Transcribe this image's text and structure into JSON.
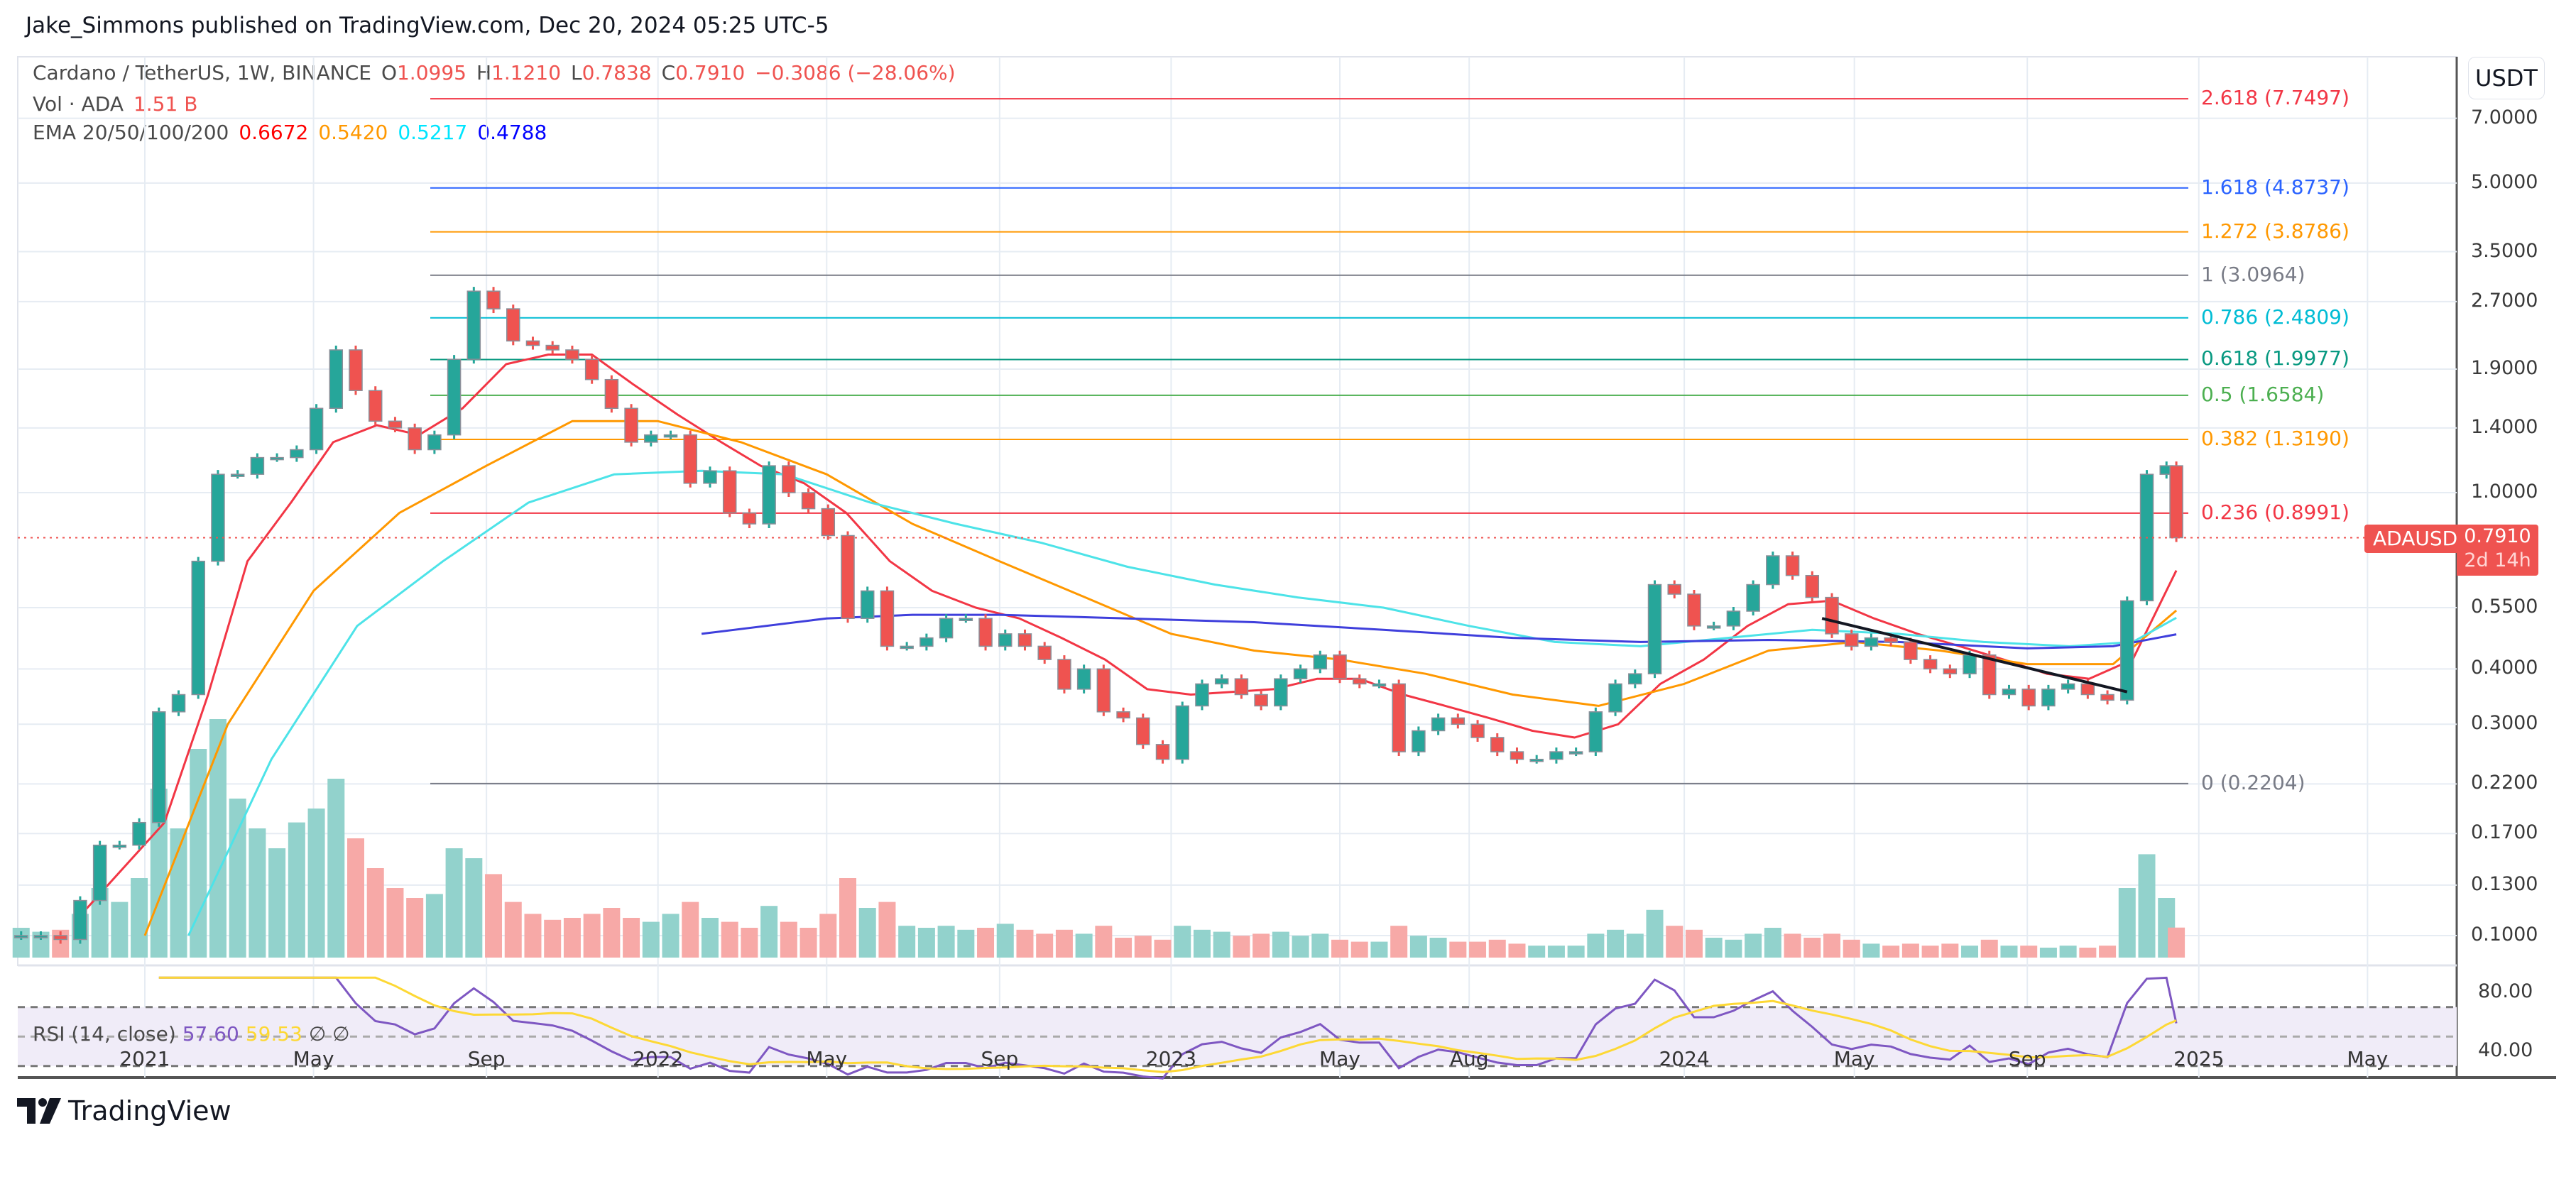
{
  "header": {
    "published": "Jake_Simmons published on TradingView.com, Dec 20, 2024 05:25 UTC-5"
  },
  "legend": {
    "symbol": "Cardano / TetherUS, 1W, BINANCE",
    "o_label": "O",
    "o": "1.0995",
    "h_label": "H",
    "h": "1.1210",
    "l_label": "L",
    "l": "0.7838",
    "c_label": "C",
    "c": "0.7910",
    "change": "−0.3086 (−28.06%)",
    "vol_label": "Vol · ADA",
    "vol": "1.51 B",
    "ema_label": "EMA 20/50/100/200",
    "ema20": "0.6672",
    "ema50": "0.5420",
    "ema100": "0.5217",
    "ema200": "0.4788"
  },
  "price_axis": {
    "currency": "USDT",
    "ticks": [
      "7.0000",
      "5.0000",
      "3.5000",
      "2.7000",
      "1.9000",
      "1.4000",
      "1.0000",
      "0.5500",
      "0.4000",
      "0.3000",
      "0.2200",
      "0.1700",
      "0.1300",
      "0.1000"
    ],
    "current_symbol": "ADAUSDT",
    "current_price": "0.7910",
    "countdown": "2d 14h"
  },
  "rsi": {
    "label": "RSI (14, close)",
    "value": "57.60",
    "ma_value": "59.53",
    "na1": "∅",
    "na2": "∅",
    "ticks": [
      "80.00",
      "40.00"
    ]
  },
  "time_axis": [
    {
      "label": "2021",
      "date": "2021-01-01"
    },
    {
      "label": "May",
      "date": "2021-05-01"
    },
    {
      "label": "Sep",
      "date": "2021-09-01"
    },
    {
      "label": "2022",
      "date": "2022-01-01"
    },
    {
      "label": "May",
      "date": "2022-05-01"
    },
    {
      "label": "Sep",
      "date": "2022-09-01"
    },
    {
      "label": "2023",
      "date": "2023-01-01"
    },
    {
      "label": "May",
      "date": "2023-05-01"
    },
    {
      "label": "Aug",
      "date": "2023-08-01"
    },
    {
      "label": "2024",
      "date": "2024-01-01"
    },
    {
      "label": "May",
      "date": "2024-05-01"
    },
    {
      "label": "Sep",
      "date": "2024-09-01"
    },
    {
      "label": "2025",
      "date": "2025-01-01"
    },
    {
      "label": "May",
      "date": "2025-05-01"
    }
  ],
  "brand": {
    "name": "TradingView"
  },
  "colors": {
    "up": "#26a69a",
    "down": "#ef5350",
    "up_vol": "#92d2cc",
    "down_vol": "#f7a9a7",
    "ema20": "#f23645",
    "ema50": "#ff9800",
    "ema100": "#4de3e8",
    "ema200": "#3f3fdc",
    "rsi": "#7e57c2",
    "rsi_ma": "#fdd835",
    "trendline": "#131722"
  },
  "chart_data": {
    "type": "candlestick",
    "title": "Cardano / TetherUS, 1W, BINANCE",
    "y_scale": "log",
    "ylim": [
      0.09,
      8.5
    ],
    "grid": true,
    "candles_date_close_volumeB": [
      [
        "2020-10-05",
        0.1,
        1.5
      ],
      [
        "2020-10-19",
        0.1,
        1.3
      ],
      [
        "2020-11-02",
        0.098,
        1.4
      ],
      [
        "2020-11-16",
        0.12,
        2.2
      ],
      [
        "2020-11-30",
        0.16,
        3.5
      ],
      [
        "2020-12-14",
        0.16,
        2.8
      ],
      [
        "2020-12-28",
        0.18,
        4.0
      ],
      [
        "2021-01-11",
        0.32,
        8.5
      ],
      [
        "2021-01-25",
        0.35,
        6.5
      ],
      [
        "2021-02-08",
        0.7,
        10.5
      ],
      [
        "2021-02-22",
        1.1,
        12.0
      ],
      [
        "2021-03-08",
        1.1,
        8.0
      ],
      [
        "2021-03-22",
        1.2,
        6.5
      ],
      [
        "2021-04-05",
        1.2,
        5.5
      ],
      [
        "2021-04-19",
        1.25,
        6.8
      ],
      [
        "2021-05-03",
        1.55,
        7.5
      ],
      [
        "2021-05-17",
        2.1,
        9.0
      ],
      [
        "2021-05-31",
        1.7,
        6.0
      ],
      [
        "2021-06-14",
        1.45,
        4.5
      ],
      [
        "2021-06-28",
        1.4,
        3.5
      ],
      [
        "2021-07-12",
        1.25,
        3.0
      ],
      [
        "2021-07-26",
        1.35,
        3.2
      ],
      [
        "2021-08-09",
        2.0,
        5.5
      ],
      [
        "2021-08-23",
        2.85,
        5.0
      ],
      [
        "2021-09-06",
        2.6,
        4.2
      ],
      [
        "2021-09-20",
        2.2,
        2.8
      ],
      [
        "2021-10-04",
        2.15,
        2.2
      ],
      [
        "2021-10-18",
        2.1,
        1.9
      ],
      [
        "2021-11-01",
        2.0,
        2.0
      ],
      [
        "2021-11-15",
        1.8,
        2.2
      ],
      [
        "2021-11-29",
        1.55,
        2.5
      ],
      [
        "2021-12-13",
        1.3,
        2.0
      ],
      [
        "2021-12-27",
        1.35,
        1.8
      ],
      [
        "2022-01-10",
        1.35,
        2.2
      ],
      [
        "2022-01-24",
        1.05,
        2.8
      ],
      [
        "2022-02-07",
        1.12,
        2.0
      ],
      [
        "2022-02-21",
        0.9,
        1.8
      ],
      [
        "2022-03-07",
        0.85,
        1.5
      ],
      [
        "2022-03-21",
        1.15,
        2.6
      ],
      [
        "2022-04-04",
        1.0,
        1.8
      ],
      [
        "2022-04-18",
        0.92,
        1.5
      ],
      [
        "2022-05-02",
        0.8,
        2.2
      ],
      [
        "2022-05-16",
        0.52,
        4.0
      ],
      [
        "2022-05-30",
        0.6,
        2.5
      ],
      [
        "2022-06-13",
        0.45,
        2.8
      ],
      [
        "2022-06-27",
        0.45,
        1.6
      ],
      [
        "2022-07-11",
        0.47,
        1.5
      ],
      [
        "2022-07-25",
        0.52,
        1.6
      ],
      [
        "2022-08-08",
        0.52,
        1.4
      ],
      [
        "2022-08-22",
        0.45,
        1.5
      ],
      [
        "2022-09-05",
        0.48,
        1.7
      ],
      [
        "2022-09-19",
        0.45,
        1.4
      ],
      [
        "2022-10-03",
        0.42,
        1.2
      ],
      [
        "2022-10-17",
        0.36,
        1.4
      ],
      [
        "2022-10-31",
        0.4,
        1.2
      ],
      [
        "2022-11-14",
        0.32,
        1.6
      ],
      [
        "2022-11-28",
        0.31,
        1.0
      ],
      [
        "2022-12-12",
        0.27,
        1.1
      ],
      [
        "2022-12-26",
        0.25,
        0.9
      ],
      [
        "2023-01-09",
        0.33,
        1.6
      ],
      [
        "2023-01-23",
        0.37,
        1.4
      ],
      [
        "2023-02-06",
        0.38,
        1.3
      ],
      [
        "2023-02-20",
        0.35,
        1.1
      ],
      [
        "2023-03-06",
        0.33,
        1.2
      ],
      [
        "2023-03-20",
        0.38,
        1.3
      ],
      [
        "2023-04-03",
        0.4,
        1.1
      ],
      [
        "2023-04-17",
        0.43,
        1.2
      ],
      [
        "2023-05-01",
        0.38,
        0.9
      ],
      [
        "2023-05-15",
        0.37,
        0.8
      ],
      [
        "2023-05-29",
        0.37,
        0.8
      ],
      [
        "2023-06-12",
        0.26,
        1.6
      ],
      [
        "2023-06-26",
        0.29,
        1.1
      ],
      [
        "2023-07-10",
        0.31,
        1.0
      ],
      [
        "2023-07-24",
        0.3,
        0.8
      ],
      [
        "2023-08-07",
        0.28,
        0.8
      ],
      [
        "2023-08-21",
        0.26,
        0.9
      ],
      [
        "2023-09-04",
        0.25,
        0.7
      ],
      [
        "2023-09-18",
        0.25,
        0.6
      ],
      [
        "2023-10-02",
        0.26,
        0.6
      ],
      [
        "2023-10-16",
        0.26,
        0.6
      ],
      [
        "2023-10-30",
        0.32,
        1.2
      ],
      [
        "2023-11-13",
        0.37,
        1.4
      ],
      [
        "2023-11-27",
        0.39,
        1.2
      ],
      [
        "2023-12-11",
        0.62,
        2.4
      ],
      [
        "2023-12-25",
        0.59,
        1.6
      ],
      [
        "2024-01-08",
        0.5,
        1.4
      ],
      [
        "2024-01-22",
        0.5,
        1.0
      ],
      [
        "2024-02-05",
        0.54,
        0.9
      ],
      [
        "2024-02-19",
        0.62,
        1.2
      ],
      [
        "2024-03-04",
        0.72,
        1.5
      ],
      [
        "2024-03-18",
        0.65,
        1.2
      ],
      [
        "2024-04-01",
        0.58,
        1.0
      ],
      [
        "2024-04-15",
        0.48,
        1.2
      ],
      [
        "2024-04-29",
        0.45,
        0.9
      ],
      [
        "2024-05-13",
        0.47,
        0.7
      ],
      [
        "2024-05-27",
        0.46,
        0.6
      ],
      [
        "2024-06-10",
        0.42,
        0.7
      ],
      [
        "2024-06-24",
        0.4,
        0.6
      ],
      [
        "2024-07-08",
        0.39,
        0.7
      ],
      [
        "2024-07-22",
        0.43,
        0.6
      ],
      [
        "2024-08-05",
        0.35,
        0.9
      ],
      [
        "2024-08-19",
        0.36,
        0.6
      ],
      [
        "2024-09-02",
        0.33,
        0.6
      ],
      [
        "2024-09-16",
        0.36,
        0.5
      ],
      [
        "2024-09-30",
        0.37,
        0.6
      ],
      [
        "2024-10-14",
        0.35,
        0.5
      ],
      [
        "2024-10-28",
        0.34,
        0.6
      ],
      [
        "2024-11-11",
        0.57,
        3.5
      ],
      [
        "2024-11-25",
        1.1,
        5.2
      ],
      [
        "2024-12-09",
        1.15,
        3.0
      ],
      [
        "2024-12-16",
        0.791,
        1.51
      ]
    ],
    "first_open": 0.1,
    "ema": [
      {
        "name": "EMA 20",
        "points": [
          [
            "2020-11-15",
            0.11
          ],
          [
            "2021-01-15",
            0.18
          ],
          [
            "2021-02-15",
            0.35
          ],
          [
            "2021-03-15",
            0.7
          ],
          [
            "2021-04-15",
            0.95
          ],
          [
            "2021-05-15",
            1.3
          ],
          [
            "2021-06-15",
            1.42
          ],
          [
            "2021-07-15",
            1.35
          ],
          [
            "2021-08-15",
            1.55
          ],
          [
            "2021-09-15",
            1.95
          ],
          [
            "2021-10-15",
            2.05
          ],
          [
            "2021-11-15",
            2.05
          ],
          [
            "2021-12-15",
            1.75
          ],
          [
            "2022-01-15",
            1.5
          ],
          [
            "2022-02-15",
            1.3
          ],
          [
            "2022-03-15",
            1.15
          ],
          [
            "2022-04-15",
            1.05
          ],
          [
            "2022-05-15",
            0.9
          ],
          [
            "2022-06-15",
            0.7
          ],
          [
            "2022-07-15",
            0.6
          ],
          [
            "2022-08-15",
            0.55
          ],
          [
            "2022-09-15",
            0.52
          ],
          [
            "2022-10-15",
            0.47
          ],
          [
            "2022-11-15",
            0.42
          ],
          [
            "2022-12-15",
            0.36
          ],
          [
            "2023-01-15",
            0.35
          ],
          [
            "2023-03-15",
            0.36
          ],
          [
            "2023-04-15",
            0.38
          ],
          [
            "2023-05-15",
            0.38
          ],
          [
            "2023-06-15",
            0.35
          ],
          [
            "2023-07-15",
            0.33
          ],
          [
            "2023-08-15",
            0.31
          ],
          [
            "2023-09-15",
            0.29
          ],
          [
            "2023-10-15",
            0.28
          ],
          [
            "2023-11-15",
            0.3
          ],
          [
            "2023-12-15",
            0.37
          ],
          [
            "2024-01-15",
            0.42
          ],
          [
            "2024-02-15",
            0.5
          ],
          [
            "2024-03-15",
            0.56
          ],
          [
            "2024-04-15",
            0.57
          ],
          [
            "2024-05-15",
            0.52
          ],
          [
            "2024-06-15",
            0.48
          ],
          [
            "2024-07-15",
            0.45
          ],
          [
            "2024-08-15",
            0.42
          ],
          [
            "2024-09-15",
            0.39
          ],
          [
            "2024-10-15",
            0.38
          ],
          [
            "2024-11-15",
            0.42
          ],
          [
            "2024-12-16",
            0.6672
          ]
        ]
      },
      {
        "name": "EMA 50",
        "points": [
          [
            "2021-01-01",
            0.1
          ],
          [
            "2021-03-01",
            0.3
          ],
          [
            "2021-05-01",
            0.6
          ],
          [
            "2021-07-01",
            0.9
          ],
          [
            "2021-09-01",
            1.15
          ],
          [
            "2021-11-01",
            1.45
          ],
          [
            "2022-01-01",
            1.45
          ],
          [
            "2022-03-01",
            1.3
          ],
          [
            "2022-05-01",
            1.1
          ],
          [
            "2022-07-01",
            0.85
          ],
          [
            "2022-09-01",
            0.7
          ],
          [
            "2022-11-01",
            0.58
          ],
          [
            "2023-01-01",
            0.48
          ],
          [
            "2023-03-01",
            0.44
          ],
          [
            "2023-05-01",
            0.42
          ],
          [
            "2023-07-01",
            0.39
          ],
          [
            "2023-09-01",
            0.35
          ],
          [
            "2023-11-01",
            0.33
          ],
          [
            "2024-01-01",
            0.37
          ],
          [
            "2024-03-01",
            0.44
          ],
          [
            "2024-05-01",
            0.46
          ],
          [
            "2024-07-01",
            0.44
          ],
          [
            "2024-09-01",
            0.41
          ],
          [
            "2024-11-01",
            0.41
          ],
          [
            "2024-12-16",
            0.542
          ]
        ]
      },
      {
        "name": "EMA 100",
        "points": [
          [
            "2021-02-01",
            0.1
          ],
          [
            "2021-04-01",
            0.25
          ],
          [
            "2021-06-01",
            0.5
          ],
          [
            "2021-08-01",
            0.7
          ],
          [
            "2021-10-01",
            0.95
          ],
          [
            "2021-12-01",
            1.1
          ],
          [
            "2022-02-01",
            1.12
          ],
          [
            "2022-04-01",
            1.1
          ],
          [
            "2022-06-01",
            0.95
          ],
          [
            "2022-08-01",
            0.85
          ],
          [
            "2022-10-01",
            0.77
          ],
          [
            "2022-12-01",
            0.68
          ],
          [
            "2023-02-01",
            0.62
          ],
          [
            "2023-04-01",
            0.58
          ],
          [
            "2023-06-01",
            0.55
          ],
          [
            "2023-08-01",
            0.5
          ],
          [
            "2023-10-01",
            0.46
          ],
          [
            "2023-12-01",
            0.45
          ],
          [
            "2024-02-01",
            0.47
          ],
          [
            "2024-04-01",
            0.49
          ],
          [
            "2024-06-01",
            0.48
          ],
          [
            "2024-08-01",
            0.46
          ],
          [
            "2024-10-01",
            0.45
          ],
          [
            "2024-11-15",
            0.46
          ],
          [
            "2024-12-16",
            0.5217
          ]
        ]
      },
      {
        "name": "EMA 200",
        "points": [
          [
            "2022-02-01",
            0.48
          ],
          [
            "2022-05-01",
            0.52
          ],
          [
            "2022-07-01",
            0.53
          ],
          [
            "2022-09-01",
            0.53
          ],
          [
            "2022-12-01",
            0.52
          ],
          [
            "2023-03-01",
            0.51
          ],
          [
            "2023-06-01",
            0.49
          ],
          [
            "2023-09-01",
            0.47
          ],
          [
            "2023-12-01",
            0.46
          ],
          [
            "2024-03-01",
            0.465
          ],
          [
            "2024-06-01",
            0.46
          ],
          [
            "2024-09-01",
            0.445
          ],
          [
            "2024-11-01",
            0.45
          ],
          [
            "2024-12-16",
            0.4788
          ]
        ]
      }
    ],
    "fib_levels": [
      {
        "label": "2.618 (7.7497)",
        "price": 7.7497,
        "color": "#f23645"
      },
      {
        "label": "1.618 (4.8737)",
        "price": 4.8737,
        "color": "#2962ff"
      },
      {
        "label": "1.272 (3.8786)",
        "price": 3.8786,
        "color": "#ff9800"
      },
      {
        "label": "1 (3.0964)",
        "price": 3.0964,
        "color": "#787b86"
      },
      {
        "label": "0.786 (2.4809)",
        "price": 2.4809,
        "color": "#00bcd4"
      },
      {
        "label": "0.618 (1.9977)",
        "price": 1.9977,
        "color": "#089981"
      },
      {
        "label": "0.5 (1.6584)",
        "price": 1.6584,
        "color": "#4caf50"
      },
      {
        "label": "0.382 (1.3190)",
        "price": 1.319,
        "color": "#ff9800"
      },
      {
        "label": "0.236 (0.8991)",
        "price": 0.8991,
        "color": "#f23645"
      },
      {
        "label": "0 (0.2204)",
        "price": 0.2204,
        "color": "#787b86"
      }
    ],
    "trendline": [
      [
        "2024-04-08",
        0.52
      ],
      [
        "2024-11-11",
        0.355
      ]
    ],
    "rsi_range": [
      20,
      90
    ],
    "rsi_bands": [
      70,
      50,
      30
    ]
  }
}
